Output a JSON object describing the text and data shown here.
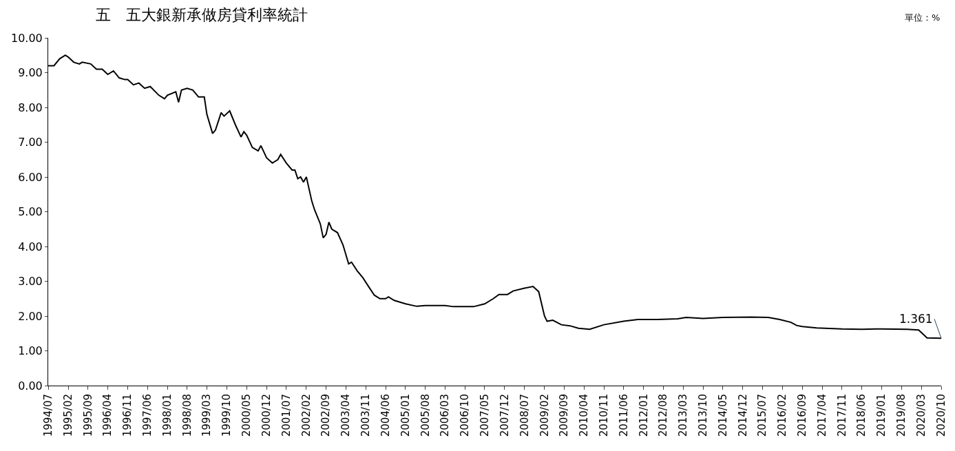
{
  "chart_data": {
    "type": "line",
    "title": "五　五大銀新承做房貸利率統計",
    "annotations": [
      "單位：%",
      {
        "text": "1.361",
        "x": "2020-10",
        "y": 1.361
      }
    ],
    "x": [
      "1994-07",
      "1994-09",
      "1994-11",
      "1995-01",
      "1995-02",
      "1995-04",
      "1995-06",
      "1995-07",
      "1995-10",
      "1995-12",
      "1996-02",
      "1996-04",
      "1996-06",
      "1996-08",
      "1996-10",
      "1996-11",
      "1997-01",
      "1997-03",
      "1997-05",
      "1997-07",
      "1997-10",
      "1997-12",
      "1998-01",
      "1998-04",
      "1998-05",
      "1998-06",
      "1998-08",
      "1998-10",
      "1998-12",
      "1999-02",
      "1999-03",
      "1999-05",
      "1999-06",
      "1999-08",
      "1999-09",
      "1999-11",
      "2000-01",
      "2000-03",
      "2000-04",
      "2000-05",
      "2000-07",
      "2000-09",
      "2000-10",
      "2000-12",
      "2001-02",
      "2001-04",
      "2001-05",
      "2001-07",
      "2001-09",
      "2001-10",
      "2001-11",
      "2001-12",
      "2002-01",
      "2002-02",
      "2002-04",
      "2002-05",
      "2002-07",
      "2002-08",
      "2002-09",
      "2002-10",
      "2002-11",
      "2003-01",
      "2003-03",
      "2003-05",
      "2003-06",
      "2003-08",
      "2003-10",
      "2003-12",
      "2004-02",
      "2004-04",
      "2004-06",
      "2004-07",
      "2004-09",
      "2005-01",
      "2005-05",
      "2005-08",
      "2006-03",
      "2006-06",
      "2006-10",
      "2007-01",
      "2007-05",
      "2007-08",
      "2007-10",
      "2008-01",
      "2008-03",
      "2008-07",
      "2008-10",
      "2008-12",
      "2009-02",
      "2009-03",
      "2009-05",
      "2009-08",
      "2009-11",
      "2010-02",
      "2010-06",
      "2010-11",
      "2011-06",
      "2011-11",
      "2012-06",
      "2013-01",
      "2013-04",
      "2013-10",
      "2014-05",
      "2015-03",
      "2015-09",
      "2016-01",
      "2016-05",
      "2016-07",
      "2016-09",
      "2017-02",
      "2017-11",
      "2018-06",
      "2019-01",
      "2019-10",
      "2020-02",
      "2020-04",
      "2020-05",
      "2020-10"
    ],
    "series": [
      {
        "color": "#000000",
        "values": [
          9.2,
          9.2,
          9.4,
          9.5,
          9.45,
          9.3,
          9.25,
          9.3,
          9.25,
          9.1,
          9.1,
          8.95,
          9.05,
          8.85,
          8.8,
          8.8,
          8.65,
          8.7,
          8.55,
          8.6,
          8.35,
          8.25,
          8.35,
          8.45,
          8.15,
          8.5,
          8.55,
          8.5,
          8.3,
          8.3,
          7.8,
          7.25,
          7.35,
          7.85,
          7.75,
          7.9,
          7.5,
          7.15,
          7.3,
          7.2,
          6.85,
          6.75,
          6.9,
          6.55,
          6.4,
          6.5,
          6.65,
          6.4,
          6.2,
          6.2,
          5.95,
          6.0,
          5.85,
          6.0,
          5.3,
          5.05,
          4.65,
          4.25,
          4.35,
          4.7,
          4.5,
          4.4,
          4.05,
          3.5,
          3.55,
          3.3,
          3.1,
          2.85,
          2.6,
          2.5,
          2.5,
          2.55,
          2.45,
          2.35,
          2.28,
          2.3,
          2.3,
          2.27,
          2.27,
          2.27,
          2.35,
          2.5,
          2.62,
          2.62,
          2.72,
          2.8,
          2.85,
          2.7,
          2.0,
          1.85,
          1.88,
          1.75,
          1.72,
          1.65,
          1.62,
          1.75,
          1.85,
          1.9,
          1.9,
          1.92,
          1.96,
          1.93,
          1.96,
          1.97,
          1.96,
          1.9,
          1.82,
          1.73,
          1.7,
          1.66,
          1.63,
          1.62,
          1.63,
          1.62,
          1.6,
          1.45,
          1.37,
          1.361
        ]
      }
    ],
    "xlim": [
      "1994-07",
      "2020-10"
    ],
    "xticks": [
      {
        "value": "1994-07",
        "label": "1994/07"
      },
      {
        "value": "1995-02",
        "label": "1995/02"
      },
      {
        "value": "1995-09",
        "label": "1995/09"
      },
      {
        "value": "1996-04",
        "label": "1996/04"
      },
      {
        "value": "1996-11",
        "label": "1996/11"
      },
      {
        "value": "1997-06",
        "label": "1997/06"
      },
      {
        "value": "1998-01",
        "label": "1998/01"
      },
      {
        "value": "1998-08",
        "label": "1998/08"
      },
      {
        "value": "1999-03",
        "label": "1999/03"
      },
      {
        "value": "1999-10",
        "label": "1999/10"
      },
      {
        "value": "2000-05",
        "label": "2000/05"
      },
      {
        "value": "2000-12",
        "label": "2000/12"
      },
      {
        "value": "2001-07",
        "label": "2001/07"
      },
      {
        "value": "2002-02",
        "label": "2002/02"
      },
      {
        "value": "2002-09",
        "label": "2002/09"
      },
      {
        "value": "2003-04",
        "label": "2003/04"
      },
      {
        "value": "2003-11",
        "label": "2003/11"
      },
      {
        "value": "2004-06",
        "label": "2004/06"
      },
      {
        "value": "2005-01",
        "label": "2005/01"
      },
      {
        "value": "2005-08",
        "label": "2005/08"
      },
      {
        "value": "2006-03",
        "label": "2006/03"
      },
      {
        "value": "2006-10",
        "label": "2006/10"
      },
      {
        "value": "2007-05",
        "label": "2007/05"
      },
      {
        "value": "2007-12",
        "label": "2007/12"
      },
      {
        "value": "2008-07",
        "label": "2008/07"
      },
      {
        "value": "2009-02",
        "label": "2009/02"
      },
      {
        "value": "2009-09",
        "label": "2009/09"
      },
      {
        "value": "2010-04",
        "label": "2010/04"
      },
      {
        "value": "2010-11",
        "label": "2010/11"
      },
      {
        "value": "2011-06",
        "label": "2011/06"
      },
      {
        "value": "2012-01",
        "label": "2012/01"
      },
      {
        "value": "2012-08",
        "label": "2012/08"
      },
      {
        "value": "2013-03",
        "label": "2013/03"
      },
      {
        "value": "2013-10",
        "label": "2013/10"
      },
      {
        "value": "2014-05",
        "label": "2014/05"
      },
      {
        "value": "2014-12",
        "label": "2014/12"
      },
      {
        "value": "2015-07",
        "label": "2015/07"
      },
      {
        "value": "2016-02",
        "label": "2016/02"
      },
      {
        "value": "2016-09",
        "label": "2016/09"
      },
      {
        "value": "2017-04",
        "label": "2017/04"
      },
      {
        "value": "2017-11",
        "label": "2017/11"
      },
      {
        "value": "2018-06",
        "label": "2018/06"
      },
      {
        "value": "2019-01",
        "label": "2019/01"
      },
      {
        "value": "2019-08",
        "label": "2019/08"
      },
      {
        "value": "2020-03",
        "label": "2020/03"
      },
      {
        "value": "2020-10",
        "label": "2020/10"
      }
    ],
    "ylim": [
      0,
      10
    ],
    "yticks": [
      {
        "value": 0,
        "label": "0.00"
      },
      {
        "value": 1,
        "label": "1.00"
      },
      {
        "value": 2,
        "label": "2.00"
      },
      {
        "value": 3,
        "label": "3.00"
      },
      {
        "value": 4,
        "label": "4.00"
      },
      {
        "value": 5,
        "label": "5.00"
      },
      {
        "value": 6,
        "label": "6.00"
      },
      {
        "value": 7,
        "label": "7.00"
      },
      {
        "value": 8,
        "label": "8.00"
      },
      {
        "value": 9,
        "label": "9.00"
      },
      {
        "value": 10,
        "label": "10.00"
      }
    ],
    "grid": false,
    "marker": "none",
    "line_style": "solid"
  }
}
